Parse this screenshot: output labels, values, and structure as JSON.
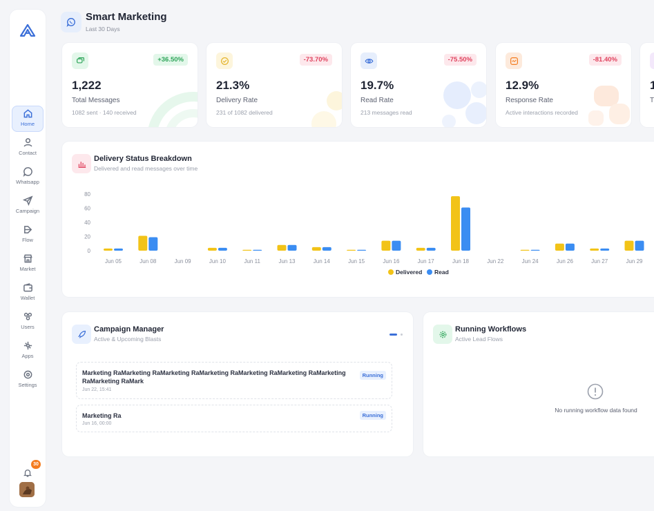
{
  "nav": [
    {
      "label": "Home",
      "icon": "home-icon"
    },
    {
      "label": "Contact",
      "icon": "contact-icon"
    },
    {
      "label": "Whatsapp",
      "icon": "whatsapp-icon"
    },
    {
      "label": "Campaign",
      "icon": "send-icon"
    },
    {
      "label": "Flow",
      "icon": "flow-icon"
    },
    {
      "label": "Market",
      "icon": "market-icon"
    },
    {
      "label": "Wallet",
      "icon": "wallet-icon"
    },
    {
      "label": "Users",
      "icon": "users-icon"
    },
    {
      "label": "Apps",
      "icon": "apps-icon"
    },
    {
      "label": "Settings",
      "icon": "settings-icon"
    }
  ],
  "notifications": {
    "count": "30"
  },
  "header": {
    "title": "Smart Marketing",
    "subtitle": "Last 30 Days"
  },
  "stats": [
    {
      "value": "1,222",
      "label": "Total Messages",
      "sub": "1082 sent · 140 received",
      "change": "+36.50%",
      "trend": "up",
      "color": "#2fa55a"
    },
    {
      "value": "21.3%",
      "label": "Delivery Rate",
      "sub": "231 of 1082 delivered",
      "change": "-73.70%",
      "trend": "down",
      "color": "#e4b32a"
    },
    {
      "value": "19.7%",
      "label": "Read Rate",
      "sub": "213 messages read",
      "change": "-75.50%",
      "trend": "down",
      "color": "#3b6fd8"
    },
    {
      "value": "12.9%",
      "label": "Response Rate",
      "sub": "Active interactions recorded",
      "change": "-81.40%",
      "trend": "down",
      "color": "#f47c20"
    },
    {
      "value": "1",
      "label": "T",
      "sub": "",
      "change": "",
      "trend": "",
      "color": "#9b59b6"
    }
  ],
  "delivery": {
    "title": "Delivery Status Breakdown",
    "subtitle": "Delivered and read messages over time"
  },
  "chart_data": {
    "type": "bar",
    "categories": [
      "Jun 05",
      "Jun 08",
      "Jun 09",
      "Jun 10",
      "Jun 11",
      "Jun 13",
      "Jun 14",
      "Jun 15",
      "Jun 16",
      "Jun 17",
      "Jun 18",
      "Jun 22",
      "Jun 24",
      "Jun 26",
      "Jun 27",
      "Jun 29"
    ],
    "series": [
      {
        "name": "Delivered",
        "color": "#f2c318",
        "values": [
          3,
          21,
          0,
          4,
          0.5,
          8,
          5,
          1,
          14,
          4,
          77,
          0,
          1,
          10,
          3,
          14
        ]
      },
      {
        "name": "Read",
        "color": "#3b8df2",
        "values": [
          3,
          19,
          0,
          4,
          0.5,
          8,
          5,
          1,
          14,
          4,
          61,
          0,
          1,
          10,
          3,
          14
        ]
      }
    ],
    "yticks": [
      "80",
      "60",
      "40",
      "20",
      "0"
    ],
    "ylim": [
      0,
      80
    ],
    "grid": false,
    "legend": "bottom-center"
  },
  "campaigns": {
    "title": "Campaign Manager",
    "subtitle": "Active & Upcoming Blasts",
    "items": [
      {
        "name": "Marketing RaMarketing RaMarketing RaMarketing RaMarketing RaMarketing RaMarketing RaMarketing RaMark",
        "date": "Jun 22, 15:41",
        "status": "Running"
      },
      {
        "name": "Marketing Ra",
        "date": "Jun 16, 00:00",
        "status": "Running"
      }
    ]
  },
  "workflows": {
    "title": "Running Workflows",
    "subtitle": "Active Lead Flows",
    "empty": "No running workflow data found"
  }
}
